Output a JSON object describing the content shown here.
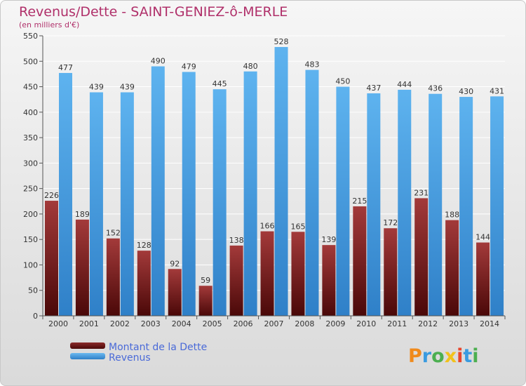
{
  "chart_data": {
    "type": "bar",
    "title": "Revenus/Dette - SAINT-GENIEZ-ô-MERLE",
    "subtitle": "(en milliers d'€)",
    "categories": [
      "2000",
      "2001",
      "2002",
      "2003",
      "2004",
      "2005",
      "2006",
      "2007",
      "2008",
      "2009",
      "2010",
      "2011",
      "2012",
      "2013",
      "2014"
    ],
    "series": [
      {
        "name": "Montant de la Dette",
        "color": "#7a1e1e",
        "values": [
          226,
          189,
          152,
          128,
          92,
          59,
          138,
          166,
          165,
          139,
          215,
          172,
          231,
          188,
          144
        ]
      },
      {
        "name": "Revenus",
        "color": "#4a9ee0",
        "values": [
          477,
          439,
          439,
          490,
          479,
          445,
          480,
          528,
          483,
          450,
          437,
          444,
          436,
          430,
          431
        ]
      }
    ],
    "ylim": [
      0,
      550
    ],
    "yticks": [
      0,
      50,
      100,
      150,
      200,
      250,
      300,
      350,
      400,
      450,
      500,
      550
    ],
    "grid": true,
    "legend": "bottom-left"
  },
  "logo": {
    "text": "Proxiti",
    "colors": [
      "#f08a1c",
      "#3a9be0",
      "#4caf50",
      "#f2c21b",
      "#e8452c",
      "#3a9be0",
      "#4caf50"
    ]
  }
}
